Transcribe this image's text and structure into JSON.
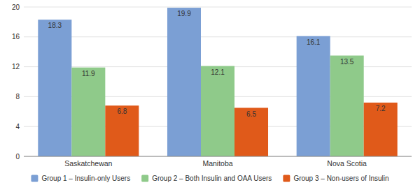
{
  "chart_data": {
    "type": "bar",
    "categories": [
      "Saskatchewan",
      "Manitoba",
      "Nova Scotia"
    ],
    "series": [
      {
        "name": "Group 1 – Insulin-only Users",
        "color": "#7b9fd4",
        "values": [
          18.3,
          19.9,
          16.1
        ]
      },
      {
        "name": "Group 2 – Both Insulin and OAA Users",
        "color": "#8fca8a",
        "values": [
          11.9,
          12.1,
          13.5
        ]
      },
      {
        "name": "Group 3 – Non-users of Insulin",
        "color": "#e05a1a",
        "values": [
          6.8,
          6.5,
          7.2
        ]
      }
    ],
    "ylim": [
      0,
      20
    ],
    "yticks": [
      0,
      4,
      8,
      12,
      16,
      20
    ],
    "grid": true,
    "legend": "bottom",
    "data_labels": true
  }
}
